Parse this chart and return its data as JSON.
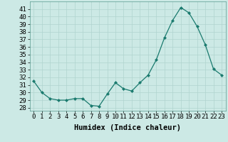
{
  "x": [
    0,
    1,
    2,
    3,
    4,
    5,
    6,
    7,
    8,
    9,
    10,
    11,
    12,
    13,
    14,
    15,
    16,
    17,
    18,
    19,
    20,
    21,
    22,
    23
  ],
  "y": [
    31.5,
    30.0,
    29.2,
    29.0,
    29.0,
    29.2,
    29.2,
    28.3,
    28.2,
    29.8,
    31.3,
    30.5,
    30.2,
    31.3,
    32.3,
    34.3,
    37.2,
    39.5,
    41.2,
    40.5,
    38.7,
    36.3,
    33.1,
    32.3
  ],
  "line_color": "#1a7a6e",
  "marker": "D",
  "marker_size": 2,
  "bg_color": "#cce9e5",
  "grid_color": "#b0d4cf",
  "xlabel": "Humidex (Indice chaleur)",
  "ylabel_ticks": [
    28,
    29,
    30,
    31,
    32,
    33,
    34,
    35,
    36,
    37,
    38,
    39,
    40,
    41
  ],
  "ylim": [
    27.6,
    42.0
  ],
  "xlim": [
    -0.5,
    23.5
  ],
  "xlabel_fontsize": 7.5,
  "tick_fontsize": 6.5
}
